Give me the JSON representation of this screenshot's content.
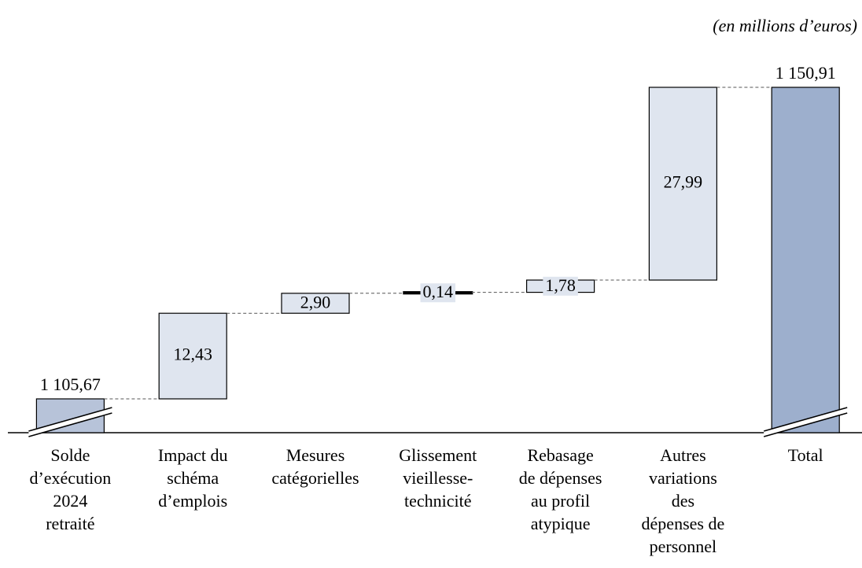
{
  "chart_data": {
    "type": "waterfall",
    "subtitle": "(en millions d’euros)",
    "categories": [
      "Solde\nd’exécution\n2024\nretraité",
      "Impact du\nschéma\nd’emplois",
      "Mesures\ncatégorielles",
      "Glissement\nvieillesse-\ntechnicité",
      "Rebasage\nde dépenses\nau profil\natypique",
      "Autres\nvariations\ndes\ndépenses de\npersonnel",
      "Total"
    ],
    "values": [
      1105.67,
      12.43,
      2.9,
      0.14,
      1.78,
      27.99,
      1150.91
    ],
    "value_labels": [
      "1 105,67",
      "12,43",
      "2,90",
      "0,14",
      "1,78",
      "27,99",
      "1 150,91"
    ],
    "measure": [
      "absolute",
      "relative",
      "relative",
      "relative",
      "relative",
      "relative",
      "total"
    ],
    "colors": {
      "absolute": "#b7c3d9",
      "relative": "#dfe5ef",
      "total": "#9dafcd"
    },
    "axis_break": true
  }
}
